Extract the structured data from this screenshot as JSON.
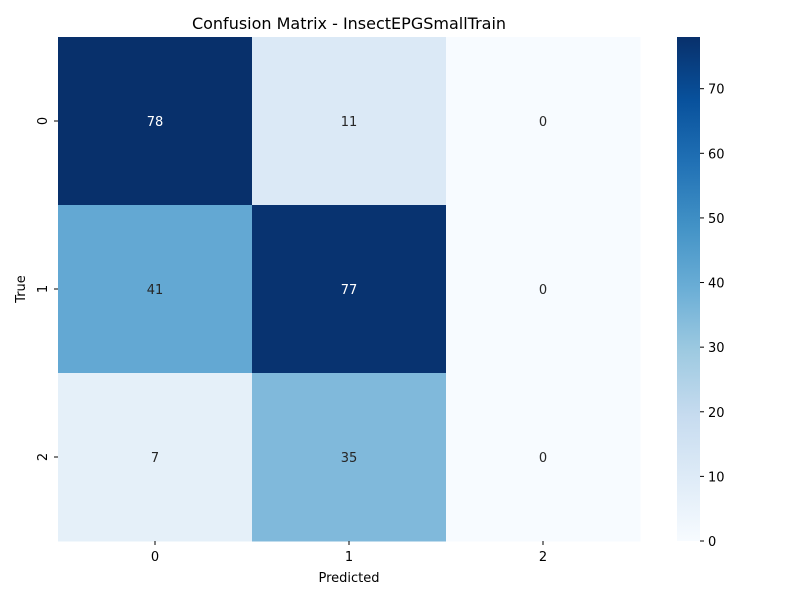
{
  "chart_data": {
    "type": "heatmap",
    "title": "Confusion Matrix - InsectEPGSmallTrain",
    "xlabel": "Predicted",
    "ylabel": "True",
    "x_categories": [
      "0",
      "1",
      "2"
    ],
    "y_categories": [
      "0",
      "1",
      "2"
    ],
    "values": [
      [
        78,
        11,
        0
      ],
      [
        41,
        77,
        0
      ],
      [
        7,
        35,
        0
      ]
    ],
    "color_scale": {
      "name": "Blues",
      "min": 0,
      "max": 78,
      "ticks": [
        0,
        10,
        20,
        30,
        40,
        50,
        60,
        70
      ]
    },
    "grid": false,
    "legend": "colorbar-right"
  }
}
